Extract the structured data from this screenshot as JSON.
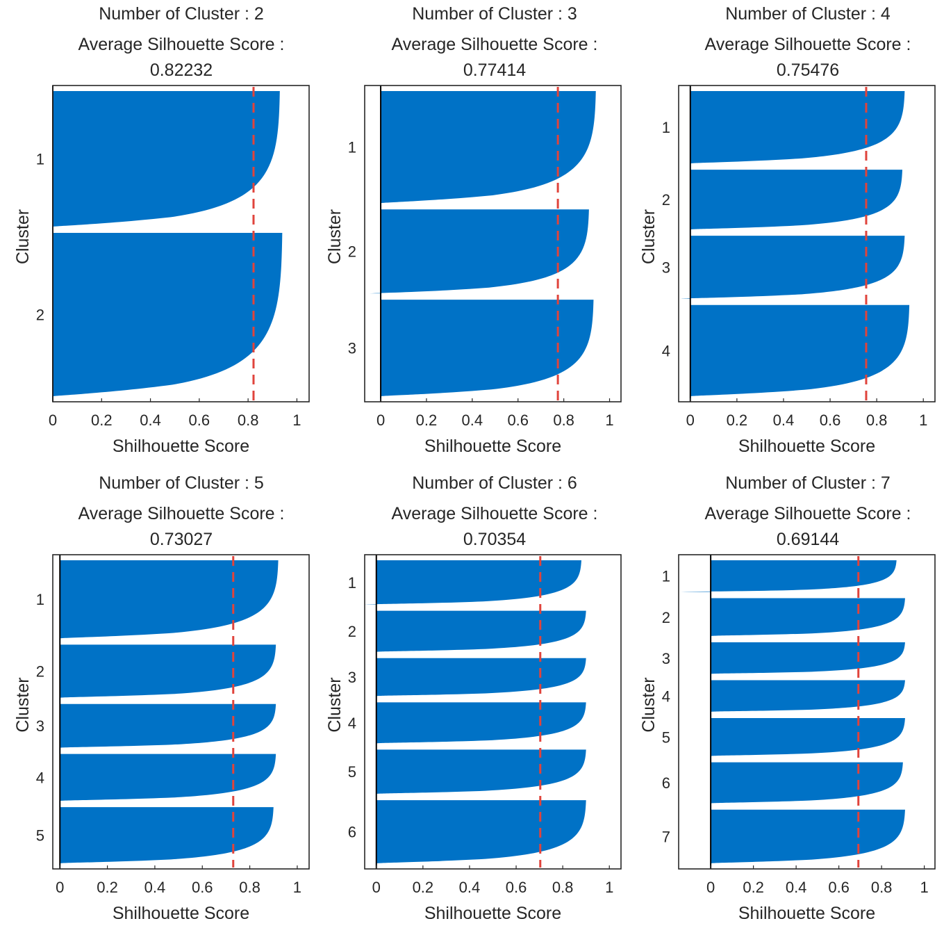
{
  "chart_data": [
    {
      "type": "area",
      "title": [
        "Number of Cluster : 2",
        "Average Silhouette Score :",
        "0.82232"
      ],
      "xlabel": "Shilhouette Score",
      "ylabel": "Cluster",
      "xlim": [
        0,
        1.05
      ],
      "xticks": [
        "0",
        "0.2",
        "0.4",
        "0.6",
        "0.8",
        "1"
      ],
      "average": 0.82232,
      "average_line_color": "#e0443c",
      "bar_color": "#0072c6",
      "grid": false,
      "clusters": [
        {
          "label": "1",
          "max": 0.93,
          "min": 0.0,
          "size": 0.44
        },
        {
          "label": "2",
          "max": 0.94,
          "min": 0.0,
          "size": 0.53
        }
      ]
    },
    {
      "type": "area",
      "title": [
        "Number of Cluster : 3",
        "Average Silhouette Score :",
        "0.77414"
      ],
      "xlabel": "Shilhouette Score",
      "ylabel": "Cluster",
      "xlim": [
        -0.07,
        1.05
      ],
      "xticks": [
        "0",
        "0.2",
        "0.4",
        "0.6",
        "0.8",
        "1"
      ],
      "average": 0.77414,
      "average_line_color": "#e0443c",
      "bar_color": "#0072c6",
      "grid": false,
      "clusters": [
        {
          "label": "1",
          "max": 0.94,
          "min": 0.0,
          "size": 0.36
        },
        {
          "label": "2",
          "max": 0.91,
          "min": -0.06,
          "size": 0.27
        },
        {
          "label": "3",
          "max": 0.93,
          "min": 0.0,
          "size": 0.31
        }
      ]
    },
    {
      "type": "area",
      "title": [
        "Number of Cluster : 4",
        "Average Silhouette Score :",
        "0.75476"
      ],
      "xlabel": "Shilhouette Score",
      "ylabel": "Cluster",
      "xlim": [
        -0.05,
        1.05
      ],
      "xticks": [
        "0",
        "0.2",
        "0.4",
        "0.6",
        "0.8",
        "1"
      ],
      "average": 0.75476,
      "average_line_color": "#e0443c",
      "bar_color": "#0072c6",
      "grid": false,
      "clusters": [
        {
          "label": "1",
          "max": 0.92,
          "min": 0.0,
          "size": 0.23
        },
        {
          "label": "2",
          "max": 0.91,
          "min": 0.0,
          "size": 0.19
        },
        {
          "label": "3",
          "max": 0.92,
          "min": -0.04,
          "size": 0.2
        },
        {
          "label": "4",
          "max": 0.94,
          "min": 0.0,
          "size": 0.29
        }
      ]
    },
    {
      "type": "area",
      "title": [
        "Number of Cluster : 5",
        "Average Silhouette Score :",
        "0.73027"
      ],
      "xlabel": "Shilhouette Score",
      "ylabel": "Cluster",
      "xlim": [
        -0.03,
        1.05
      ],
      "xticks": [
        "0",
        "0.2",
        "0.4",
        "0.6",
        "0.8",
        "1"
      ],
      "average": 0.73027,
      "average_line_color": "#e0443c",
      "bar_color": "#0072c6",
      "grid": false,
      "clusters": [
        {
          "label": "1",
          "max": 0.92,
          "min": 0.0,
          "size": 0.25
        },
        {
          "label": "2",
          "max": 0.91,
          "min": 0.0,
          "size": 0.17
        },
        {
          "label": "3",
          "max": 0.91,
          "min": 0.0,
          "size": 0.14
        },
        {
          "label": "4",
          "max": 0.91,
          "min": 0.0,
          "size": 0.15
        },
        {
          "label": "5",
          "max": 0.9,
          "min": 0.0,
          "size": 0.18
        }
      ]
    },
    {
      "type": "area",
      "title": [
        "Number of Cluster : 6",
        "Average Silhouette Score :",
        "0.70354"
      ],
      "xlabel": "Shilhouette Score",
      "ylabel": "Cluster",
      "xlim": [
        -0.05,
        1.05
      ],
      "xticks": [
        "0",
        "0.2",
        "0.4",
        "0.6",
        "0.8",
        "1"
      ],
      "average": 0.70354,
      "average_line_color": "#e0443c",
      "bar_color": "#0072c6",
      "grid": false,
      "clusters": [
        {
          "label": "1",
          "max": 0.88,
          "min": -0.05,
          "size": 0.14
        },
        {
          "label": "2",
          "max": 0.9,
          "min": 0.0,
          "size": 0.13
        },
        {
          "label": "3",
          "max": 0.9,
          "min": 0.0,
          "size": 0.12
        },
        {
          "label": "4",
          "max": 0.9,
          "min": 0.0,
          "size": 0.13
        },
        {
          "label": "5",
          "max": 0.9,
          "min": 0.0,
          "size": 0.14
        },
        {
          "label": "6",
          "max": 0.9,
          "min": 0.0,
          "size": 0.2
        }
      ]
    },
    {
      "type": "area",
      "title": [
        "Number of Cluster : 7",
        "Average Silhouette Score :",
        "0.69144"
      ],
      "xlabel": "Shilhouette Score",
      "ylabel": "Cluster",
      "xlim": [
        -0.15,
        1.05
      ],
      "xticks": [
        "0",
        "0.2",
        "0.4",
        "0.6",
        "0.8",
        "1"
      ],
      "average": 0.69144,
      "average_line_color": "#e0443c",
      "bar_color": "#0072c6",
      "grid": false,
      "clusters": [
        {
          "label": "1",
          "max": 0.87,
          "min": -0.14,
          "size": 0.1
        },
        {
          "label": "2",
          "max": 0.91,
          "min": 0.0,
          "size": 0.12
        },
        {
          "label": "3",
          "max": 0.91,
          "min": 0.0,
          "size": 0.1
        },
        {
          "label": "4",
          "max": 0.91,
          "min": 0.0,
          "size": 0.1
        },
        {
          "label": "5",
          "max": 0.91,
          "min": 0.0,
          "size": 0.12
        },
        {
          "label": "6",
          "max": 0.9,
          "min": 0.0,
          "size": 0.13
        },
        {
          "label": "7",
          "max": 0.91,
          "min": 0.0,
          "size": 0.17
        }
      ]
    }
  ]
}
